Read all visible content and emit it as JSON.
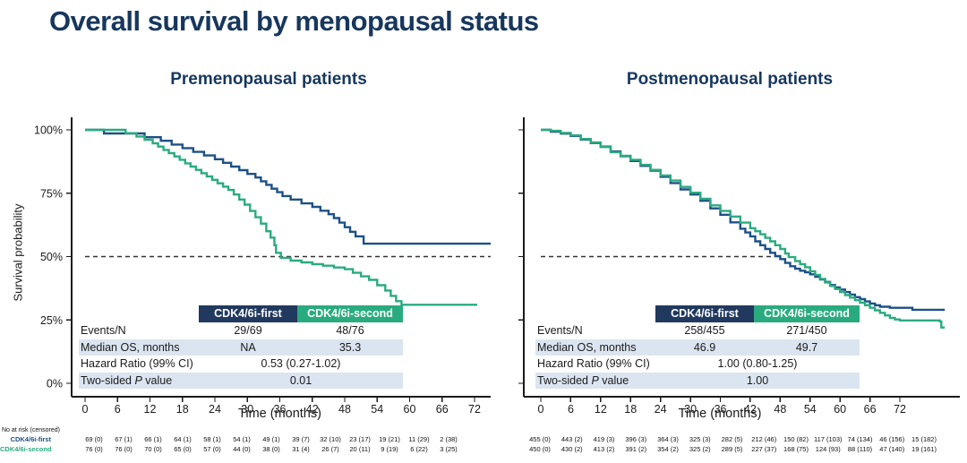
{
  "slide_title": "Overall survival by menopausal status",
  "at_risk_caption": "No at risk (censored)",
  "colors": {
    "title": "#17375D",
    "navy": "#1D5086",
    "green": "#2AAB7F",
    "header_navy": "#21395E",
    "header_green": "#2AAB7F",
    "row_shade": "#DBE5F1",
    "axis": "#1A1A1A",
    "reference": "#333333"
  },
  "chart_data": [
    {
      "type": "line",
      "subtype": "kaplan_meier_step",
      "title": "Premenopausal patients",
      "xlabel": "Time (months)",
      "ylabel": "Survival probability",
      "xlim": [
        0,
        78
      ],
      "ylim": [
        0,
        100
      ],
      "x_ticks": [
        0,
        6,
        12,
        18,
        24,
        30,
        36,
        42,
        48,
        54,
        60,
        66,
        72
      ],
      "y_ticks": [
        100,
        75,
        50,
        25,
        0
      ],
      "y_tick_labels": [
        "100%",
        "75%",
        "50%",
        "25%",
        "0%"
      ],
      "grid": false,
      "legend_position": "none",
      "reference_line": {
        "y": 50,
        "x_start": 0,
        "x_end": null,
        "style": "dashed"
      },
      "series": [
        {
          "name": "CDK4/6i-first",
          "color_key": "navy",
          "points": [
            [
              0,
              100
            ],
            [
              3.5,
              98.6
            ],
            [
              11,
              97.1
            ],
            [
              14,
              95.7
            ],
            [
              16,
              94.2
            ],
            [
              18,
              92.8
            ],
            [
              20,
              91.3
            ],
            [
              22,
              89.9
            ],
            [
              24,
              88.4
            ],
            [
              25.5,
              87
            ],
            [
              27,
              85.5
            ],
            [
              28.5,
              84.1
            ],
            [
              30,
              82.6
            ],
            [
              31.5,
              81.2
            ],
            [
              32.5,
              79.7
            ],
            [
              33.5,
              78.3
            ],
            [
              34.5,
              76.8
            ],
            [
              35.5,
              75.4
            ],
            [
              36.5,
              73.9
            ],
            [
              38,
              72.5
            ],
            [
              40,
              71
            ],
            [
              42,
              69.6
            ],
            [
              43.5,
              68.1
            ],
            [
              45,
              66.7
            ],
            [
              46,
              65.2
            ],
            [
              47,
              63.4
            ],
            [
              48,
              61.6
            ],
            [
              49,
              59.8
            ],
            [
              50,
              58
            ],
            [
              51.5,
              55.1
            ],
            [
              75,
              55.1
            ]
          ]
        },
        {
          "name": "CDK4/6i-second",
          "color_key": "green",
          "points": [
            [
              0,
              100
            ],
            [
              7.5,
              98.7
            ],
            [
              9.5,
              97.4
            ],
            [
              11,
              96.1
            ],
            [
              12.5,
              94.7
            ],
            [
              13.5,
              93.4
            ],
            [
              14.5,
              92.1
            ],
            [
              15.5,
              90.8
            ],
            [
              16.5,
              89.5
            ],
            [
              17.5,
              88.2
            ],
            [
              18.5,
              86.8
            ],
            [
              19.5,
              85.5
            ],
            [
              20.5,
              84.2
            ],
            [
              21.5,
              82.9
            ],
            [
              22.5,
              81.6
            ],
            [
              23.5,
              80.3
            ],
            [
              24.5,
              78.9
            ],
            [
              25.5,
              77.6
            ],
            [
              26.5,
              76.3
            ],
            [
              27.5,
              74.5
            ],
            [
              28.5,
              72.5
            ],
            [
              29.5,
              70.5
            ],
            [
              30.5,
              68
            ],
            [
              31.5,
              65.5
            ],
            [
              32.5,
              63
            ],
            [
              33.5,
              60
            ],
            [
              34.3,
              57.5
            ],
            [
              35,
              54.5
            ],
            [
              35.3,
              51.5
            ],
            [
              36.2,
              49.5
            ],
            [
              38,
              48.4
            ],
            [
              40,
              47.7
            ],
            [
              42,
              47
            ],
            [
              44,
              46.4
            ],
            [
              46,
              45.7
            ],
            [
              48,
              45
            ],
            [
              49.5,
              43.6
            ],
            [
              51,
              42.2
            ],
            [
              52.5,
              40.8
            ],
            [
              54,
              38.7
            ],
            [
              55.5,
              36.6
            ],
            [
              56.5,
              34.5
            ],
            [
              57.5,
              32.4
            ],
            [
              58.5,
              31
            ],
            [
              72.5,
              31
            ]
          ]
        }
      ],
      "stats_table": {
        "col_headers": [
          "CDK4/6i-first",
          "CDK4/6i-second"
        ],
        "rows": [
          {
            "label": "Events/N",
            "values": [
              "29/69",
              "48/76"
            ],
            "shaded": false,
            "merged": false
          },
          {
            "label": "Median OS, months",
            "values": [
              "NA",
              "35.3"
            ],
            "shaded": true,
            "merged": false
          },
          {
            "label": "Hazard Ratio (99% CI)",
            "values": [
              "0.53 (0.27-1.02)"
            ],
            "shaded": false,
            "merged": true
          },
          {
            "label_parts": [
              "Two-sided ",
              "P",
              " value"
            ],
            "values": [
              "0.01"
            ],
            "shaded": true,
            "merged": true
          }
        ]
      },
      "at_risk": {
        "times": [
          0,
          6,
          12,
          18,
          24,
          30,
          36,
          42,
          48,
          54,
          60,
          66,
          72
        ],
        "rows": [
          {
            "label": "CDK4/6i-first",
            "color_key": "navy",
            "values": [
              "69 (0)",
              "67 (1)",
              "66 (1)",
              "64 (1)",
              "58 (1)",
              "54 (1)",
              "49 (1)",
              "39 (7)",
              "32 (10)",
              "23 (17)",
              "19 (21)",
              "11 (29)",
              "2 (38)"
            ]
          },
          {
            "label": "CDK4/6i-second",
            "color_key": "green",
            "values": [
              "76 (0)",
              "76 (0)",
              "70 (0)",
              "65 (0)",
              "57 (0)",
              "44 (0)",
              "38 (0)",
              "31 (4)",
              "26 (7)",
              "20 (11)",
              "9 (19)",
              "6 (22)",
              "3 (25)"
            ]
          }
        ]
      }
    },
    {
      "type": "line",
      "subtype": "kaplan_meier_step",
      "title": "Postmenopausal patients",
      "xlabel": "Time (months)",
      "ylabel": "",
      "xlim": [
        0,
        84
      ],
      "ylim": [
        0,
        100
      ],
      "x_ticks": [
        0,
        6,
        12,
        18,
        24,
        30,
        36,
        42,
        48,
        54,
        60,
        66,
        72
      ],
      "y_ticks": [
        100,
        75,
        50,
        25,
        0
      ],
      "grid": false,
      "legend_position": "none",
      "reference_line": {
        "y": 50,
        "x_start": 0,
        "x_end": 48.5,
        "style": "dashed"
      },
      "series": [
        {
          "name": "CDK4/6i-first",
          "color_key": "navy",
          "points": [
            [
              0,
              100
            ],
            [
              2,
              99.3
            ],
            [
              4,
              98.5
            ],
            [
              6,
              97.6
            ],
            [
              8,
              96.2
            ],
            [
              10,
              94.8
            ],
            [
              12,
              93.4
            ],
            [
              14,
              91.5
            ],
            [
              16,
              89.6
            ],
            [
              18,
              87.7
            ],
            [
              20,
              85.8
            ],
            [
              22,
              83.9
            ],
            [
              24,
              81.5
            ],
            [
              26,
              79
            ],
            [
              28,
              76.5
            ],
            [
              30,
              74.5
            ],
            [
              32,
              72
            ],
            [
              34,
              69
            ],
            [
              36,
              66.5
            ],
            [
              38,
              63.5
            ],
            [
              40,
              61
            ],
            [
              41,
              59.5
            ],
            [
              42,
              58
            ],
            [
              43,
              56
            ],
            [
              44,
              54.5
            ],
            [
              45,
              53
            ],
            [
              46,
              51.5
            ],
            [
              47,
              50.2
            ],
            [
              48,
              49
            ],
            [
              49,
              47.5
            ],
            [
              50,
              46.2
            ],
            [
              51,
              45.2
            ],
            [
              52,
              44.4
            ],
            [
              53,
              43.8
            ],
            [
              54,
              43
            ],
            [
              55,
              42
            ],
            [
              56,
              41
            ],
            [
              57,
              40
            ],
            [
              58,
              38.8
            ],
            [
              59,
              37.8
            ],
            [
              60,
              37
            ],
            [
              61,
              36
            ],
            [
              62,
              35
            ],
            [
              63,
              34
            ],
            [
              64,
              33.2
            ],
            [
              65,
              32.3
            ],
            [
              66,
              31.5
            ],
            [
              67,
              30.8
            ],
            [
              68,
              30.2
            ],
            [
              70,
              29.8
            ],
            [
              74.5,
              29
            ],
            [
              81,
              29
            ]
          ]
        },
        {
          "name": "CDK4/6i-second",
          "color_key": "green",
          "points": [
            [
              0,
              100
            ],
            [
              2,
              99.6
            ],
            [
              4,
              98.8
            ],
            [
              6,
              97.8
            ],
            [
              8,
              96.4
            ],
            [
              10,
              95
            ],
            [
              12,
              93.2
            ],
            [
              14,
              91.2
            ],
            [
              16,
              89.8
            ],
            [
              18,
              88.2
            ],
            [
              20,
              86.2
            ],
            [
              22,
              84.2
            ],
            [
              24,
              82
            ],
            [
              26,
              80
            ],
            [
              28,
              77.5
            ],
            [
              30,
              75.2
            ],
            [
              32,
              72.8
            ],
            [
              34,
              70.2
            ],
            [
              36,
              68
            ],
            [
              38,
              65.8
            ],
            [
              40,
              63.4
            ],
            [
              42,
              61.2
            ],
            [
              43,
              60
            ],
            [
              44,
              58.8
            ],
            [
              45,
              57.4
            ],
            [
              46,
              56
            ],
            [
              47,
              54.5
            ],
            [
              48,
              53
            ],
            [
              49,
              51.2
            ],
            [
              49.7,
              49.8
            ],
            [
              51,
              48.2
            ],
            [
              52,
              47
            ],
            [
              53,
              45.8
            ],
            [
              54,
              44.2
            ],
            [
              55,
              42.8
            ],
            [
              56,
              41.2
            ],
            [
              57,
              39.8
            ],
            [
              58,
              38.4
            ],
            [
              59,
              37.2
            ],
            [
              60,
              36
            ],
            [
              61,
              34.8
            ],
            [
              62,
              33.8
            ],
            [
              63,
              32.8
            ],
            [
              64,
              31.8
            ],
            [
              65,
              30.8
            ],
            [
              66,
              29.8
            ],
            [
              67,
              28.8
            ],
            [
              68,
              27.8
            ],
            [
              69,
              26.8
            ],
            [
              70,
              25.8
            ],
            [
              71,
              25.2
            ],
            [
              72,
              24.8
            ],
            [
              80,
              24.4
            ],
            [
              80.3,
              22
            ],
            [
              81,
              22
            ]
          ]
        }
      ],
      "stats_table": {
        "col_headers": [
          "CDK4/6i-first",
          "CDK4/6i-second"
        ],
        "rows": [
          {
            "label": "Events/N",
            "values": [
              "258/455",
              "271/450"
            ],
            "shaded": false,
            "merged": false
          },
          {
            "label": "Median OS, months",
            "values": [
              "46.9",
              "49.7"
            ],
            "shaded": true,
            "merged": false
          },
          {
            "label": "Hazard Ratio (99% CI)",
            "values": [
              "1.00 (0.80-1.25)"
            ],
            "shaded": false,
            "merged": true
          },
          {
            "label_parts": [
              "Two-sided ",
              "P",
              " value"
            ],
            "values": [
              "1.00"
            ],
            "shaded": true,
            "merged": true
          }
        ]
      },
      "at_risk": {
        "times": [
          0,
          6,
          12,
          18,
          24,
          30,
          36,
          42,
          48,
          54,
          60,
          66,
          72
        ],
        "rows": [
          {
            "label": "CDK4/6i-first",
            "color_key": "navy",
            "values": [
              "455 (0)",
              "443 (2)",
              "419 (3)",
              "396 (3)",
              "364 (3)",
              "325 (3)",
              "282 (5)",
              "212 (46)",
              "150 (82)",
              "117 (103)",
              "74 (134)",
              "46 (156)",
              "15 (182)"
            ]
          },
          {
            "label": "CDK4/6i-second",
            "color_key": "green",
            "values": [
              "450 (0)",
              "430 (2)",
              "413 (2)",
              "391 (2)",
              "354 (2)",
              "325 (2)",
              "289 (5)",
              "227 (37)",
              "168 (75)",
              "124 (93)",
              "88 (110)",
              "47 (140)",
              "19 (161)"
            ]
          }
        ]
      }
    }
  ]
}
